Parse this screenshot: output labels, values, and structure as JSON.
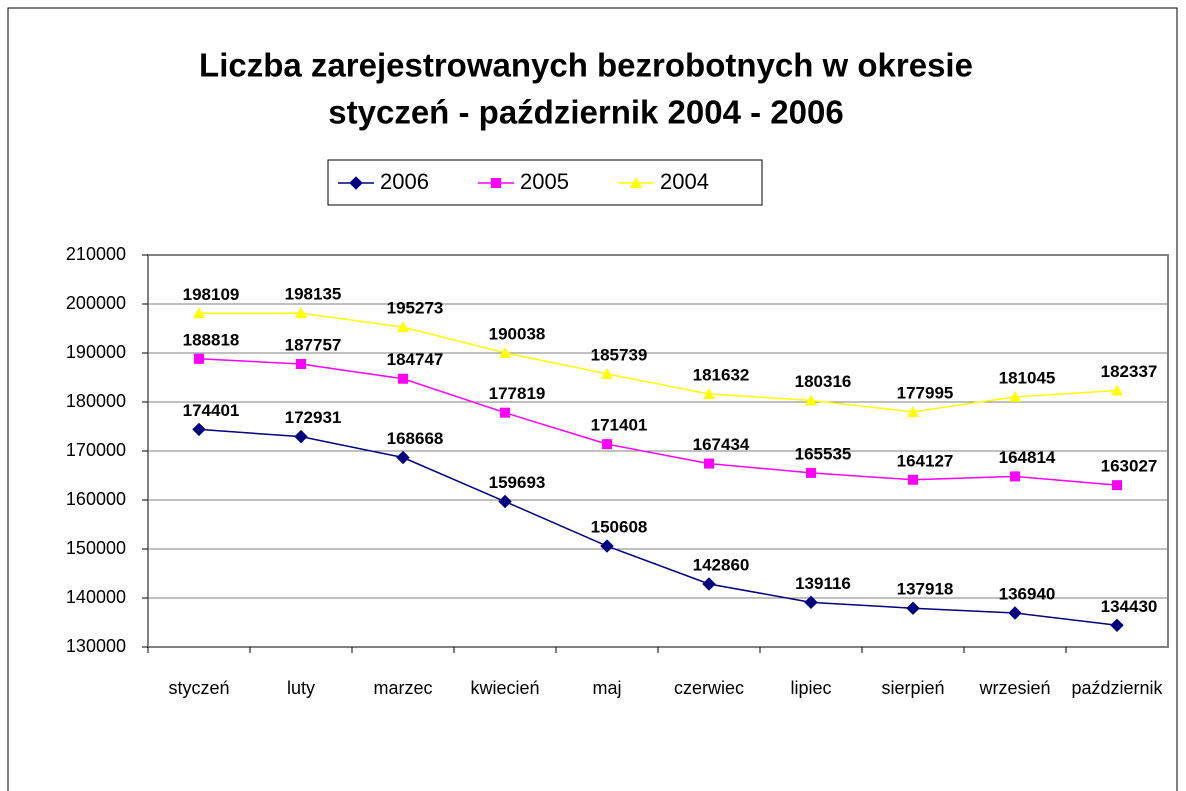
{
  "chart_data": {
    "type": "line",
    "title": [
      "Liczba zarejestrowanych bezrobotnych w okresie",
      "styczeń - październik 2004 - 2006"
    ],
    "categories": [
      "styczeń",
      "luty",
      "marzec",
      "kwiecień",
      "maj",
      "czerwiec",
      "lipiec",
      "sierpień",
      "wrzesień",
      "październik"
    ],
    "series": [
      {
        "name": "2006",
        "color": "#000080",
        "marker": "diamond",
        "values": [
          174401,
          172931,
          168668,
          159693,
          150608,
          142860,
          139116,
          137918,
          136940,
          134430
        ]
      },
      {
        "name": "2005",
        "color": "#ff00ff",
        "marker": "square",
        "values": [
          188818,
          187757,
          184747,
          177819,
          171401,
          167434,
          165535,
          164127,
          164814,
          163027
        ]
      },
      {
        "name": "2004",
        "color": "#ffff00",
        "marker": "triangle",
        "values": [
          198109,
          198135,
          195273,
          190038,
          185739,
          181632,
          180316,
          177995,
          181045,
          182337
        ]
      }
    ],
    "ylim": [
      130000,
      210000
    ],
    "yticks": [
      130000,
      140000,
      150000,
      160000,
      170000,
      180000,
      190000,
      200000,
      210000
    ],
    "grid": true,
    "legend": "top"
  }
}
